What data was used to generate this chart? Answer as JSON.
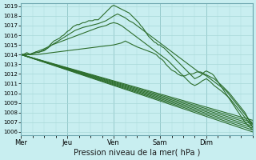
{
  "title": "Pression niveau de la mer( hPa )",
  "bg_color": "#c8eef0",
  "grid_color": "#a8d8d8",
  "line_color": "#2d6e2d",
  "ymin": 1006,
  "ymax": 1019,
  "yticks": [
    1006,
    1007,
    1008,
    1009,
    1010,
    1011,
    1012,
    1013,
    1014,
    1015,
    1016,
    1017,
    1018,
    1019
  ],
  "day_labels": [
    "Mer",
    "Jeu",
    "Ven",
    "Sam",
    "Dim"
  ],
  "day_positions": [
    0,
    24,
    48,
    72,
    96
  ],
  "total_hours": 120,
  "series": [
    {
      "points": [
        [
          0,
          1014.0
        ],
        [
          1,
          1014.0
        ],
        [
          2,
          1014.1
        ],
        [
          3,
          1014.2
        ],
        [
          4,
          1014.1
        ],
        [
          5,
          1014.0
        ],
        [
          6,
          1014.1
        ],
        [
          7,
          1014.2
        ],
        [
          8,
          1014.3
        ],
        [
          9,
          1014.2
        ],
        [
          10,
          1014.3
        ],
        [
          11,
          1014.4
        ],
        [
          12,
          1014.5
        ],
        [
          13,
          1014.6
        ],
        [
          14,
          1014.7
        ],
        [
          15,
          1015.0
        ],
        [
          16,
          1015.2
        ],
        [
          17,
          1015.4
        ],
        [
          18,
          1015.5
        ],
        [
          19,
          1015.6
        ],
        [
          20,
          1015.7
        ],
        [
          21,
          1015.9
        ],
        [
          22,
          1016.0
        ],
        [
          23,
          1016.2
        ],
        [
          24,
          1016.4
        ],
        [
          25,
          1016.5
        ],
        [
          26,
          1016.7
        ],
        [
          27,
          1016.9
        ],
        [
          28,
          1017.0
        ],
        [
          29,
          1017.1
        ],
        [
          30,
          1017.1
        ],
        [
          31,
          1017.2
        ],
        [
          32,
          1017.3
        ],
        [
          33,
          1017.3
        ],
        [
          34,
          1017.4
        ],
        [
          35,
          1017.5
        ],
        [
          36,
          1017.5
        ],
        [
          37,
          1017.5
        ],
        [
          38,
          1017.6
        ],
        [
          39,
          1017.6
        ],
        [
          40,
          1017.6
        ],
        [
          41,
          1017.8
        ],
        [
          42,
          1018.0
        ],
        [
          43,
          1018.2
        ],
        [
          44,
          1018.4
        ],
        [
          45,
          1018.6
        ],
        [
          46,
          1018.8
        ],
        [
          47,
          1019.0
        ],
        [
          48,
          1019.1
        ],
        [
          49,
          1019.0
        ],
        [
          50,
          1018.9
        ],
        [
          51,
          1018.8
        ],
        [
          52,
          1018.7
        ],
        [
          53,
          1018.6
        ],
        [
          54,
          1018.5
        ],
        [
          55,
          1018.4
        ],
        [
          56,
          1018.3
        ],
        [
          57,
          1018.1
        ],
        [
          58,
          1017.9
        ],
        [
          59,
          1017.7
        ],
        [
          60,
          1017.5
        ],
        [
          61,
          1017.3
        ],
        [
          62,
          1017.0
        ],
        [
          63,
          1016.8
        ],
        [
          64,
          1016.5
        ],
        [
          65,
          1016.2
        ],
        [
          66,
          1015.9
        ],
        [
          67,
          1015.7
        ],
        [
          68,
          1015.5
        ],
        [
          69,
          1015.3
        ],
        [
          70,
          1015.2
        ],
        [
          71,
          1015.0
        ],
        [
          72,
          1015.0
        ],
        [
          73,
          1014.8
        ],
        [
          74,
          1014.7
        ],
        [
          75,
          1014.5
        ],
        [
          76,
          1014.3
        ],
        [
          77,
          1014.1
        ],
        [
          78,
          1013.9
        ],
        [
          79,
          1013.7
        ],
        [
          80,
          1013.5
        ],
        [
          81,
          1013.3
        ],
        [
          82,
          1013.1
        ],
        [
          83,
          1012.9
        ],
        [
          84,
          1012.7
        ],
        [
          85,
          1012.5
        ],
        [
          86,
          1012.3
        ],
        [
          87,
          1012.1
        ],
        [
          88,
          1011.9
        ],
        [
          89,
          1011.7
        ],
        [
          90,
          1011.5
        ],
        [
          91,
          1011.6
        ],
        [
          92,
          1011.7
        ],
        [
          93,
          1011.8
        ],
        [
          94,
          1012.0
        ],
        [
          95,
          1012.2
        ],
        [
          96,
          1012.3
        ],
        [
          97,
          1012.2
        ],
        [
          98,
          1012.1
        ],
        [
          99,
          1012.0
        ],
        [
          100,
          1011.8
        ],
        [
          101,
          1011.5
        ],
        [
          102,
          1011.2
        ],
        [
          103,
          1010.9
        ],
        [
          104,
          1010.6
        ],
        [
          105,
          1010.3
        ],
        [
          106,
          1010.0
        ],
        [
          107,
          1009.7
        ],
        [
          108,
          1009.4
        ],
        [
          109,
          1009.1
        ],
        [
          110,
          1008.8
        ],
        [
          111,
          1008.5
        ],
        [
          112,
          1008.2
        ],
        [
          113,
          1007.9
        ],
        [
          114,
          1007.6
        ],
        [
          115,
          1007.3
        ],
        [
          116,
          1007.0
        ],
        [
          117,
          1006.8
        ],
        [
          118,
          1006.6
        ],
        [
          119,
          1006.4
        ],
        [
          120,
          1006.2
        ]
      ]
    },
    {
      "points": [
        [
          0,
          1014.0
        ],
        [
          4,
          1014.0
        ],
        [
          8,
          1014.2
        ],
        [
          12,
          1014.4
        ],
        [
          16,
          1015.0
        ],
        [
          20,
          1015.5
        ],
        [
          24,
          1016.0
        ],
        [
          28,
          1016.5
        ],
        [
          32,
          1016.8
        ],
        [
          36,
          1017.0
        ],
        [
          40,
          1017.2
        ],
        [
          44,
          1017.5
        ],
        [
          48,
          1018.0
        ],
        [
          50,
          1018.2
        ],
        [
          52,
          1018.0
        ],
        [
          54,
          1017.8
        ],
        [
          56,
          1017.5
        ],
        [
          58,
          1017.3
        ],
        [
          60,
          1017.0
        ],
        [
          62,
          1016.7
        ],
        [
          64,
          1016.4
        ],
        [
          66,
          1016.1
        ],
        [
          68,
          1015.8
        ],
        [
          70,
          1015.5
        ],
        [
          72,
          1015.2
        ],
        [
          74,
          1014.9
        ],
        [
          76,
          1014.6
        ],
        [
          78,
          1014.3
        ],
        [
          80,
          1014.0
        ],
        [
          82,
          1013.7
        ],
        [
          84,
          1013.4
        ],
        [
          86,
          1013.1
        ],
        [
          88,
          1012.8
        ],
        [
          90,
          1012.5
        ],
        [
          92,
          1012.2
        ],
        [
          94,
          1012.0
        ],
        [
          96,
          1011.8
        ],
        [
          98,
          1011.5
        ],
        [
          100,
          1011.2
        ],
        [
          102,
          1010.9
        ],
        [
          104,
          1010.6
        ],
        [
          106,
          1010.3
        ],
        [
          108,
          1009.8
        ],
        [
          110,
          1009.3
        ],
        [
          112,
          1008.8
        ],
        [
          114,
          1008.3
        ],
        [
          116,
          1007.8
        ],
        [
          118,
          1007.3
        ],
        [
          120,
          1006.8
        ]
      ]
    },
    {
      "points": [
        [
          0,
          1014.0
        ],
        [
          120,
          1006.0
        ]
      ]
    },
    {
      "points": [
        [
          0,
          1014.0
        ],
        [
          120,
          1006.2
        ]
      ]
    },
    {
      "points": [
        [
          0,
          1014.0
        ],
        [
          120,
          1006.4
        ]
      ]
    },
    {
      "points": [
        [
          0,
          1014.0
        ],
        [
          120,
          1006.6
        ]
      ]
    },
    {
      "points": [
        [
          0,
          1014.0
        ],
        [
          120,
          1006.8
        ]
      ]
    },
    {
      "points": [
        [
          0,
          1014.0
        ],
        [
          120,
          1007.0
        ]
      ]
    },
    {
      "points": [
        [
          0,
          1014.0
        ],
        [
          120,
          1007.2
        ]
      ]
    },
    {
      "points": [
        [
          0,
          1014.0
        ],
        [
          4,
          1014.0
        ],
        [
          8,
          1014.3
        ],
        [
          12,
          1014.6
        ],
        [
          16,
          1015.0
        ],
        [
          20,
          1015.3
        ],
        [
          24,
          1015.6
        ],
        [
          28,
          1015.9
        ],
        [
          32,
          1016.2
        ],
        [
          36,
          1016.5
        ],
        [
          40,
          1016.8
        ],
        [
          44,
          1017.0
        ],
        [
          46,
          1017.2
        ],
        [
          48,
          1017.3
        ],
        [
          50,
          1017.2
        ],
        [
          52,
          1017.0
        ],
        [
          54,
          1016.7
        ],
        [
          56,
          1016.4
        ],
        [
          58,
          1016.1
        ],
        [
          60,
          1015.8
        ],
        [
          62,
          1015.5
        ],
        [
          64,
          1015.2
        ],
        [
          66,
          1014.9
        ],
        [
          68,
          1014.6
        ],
        [
          70,
          1014.3
        ],
        [
          72,
          1014.0
        ],
        [
          74,
          1013.7
        ],
        [
          76,
          1013.4
        ],
        [
          78,
          1013.0
        ],
        [
          80,
          1012.6
        ],
        [
          82,
          1012.2
        ],
        [
          84,
          1011.8
        ],
        [
          86,
          1011.4
        ],
        [
          88,
          1011.0
        ],
        [
          90,
          1010.8
        ],
        [
          92,
          1011.0
        ],
        [
          94,
          1011.3
        ],
        [
          96,
          1011.5
        ],
        [
          98,
          1011.2
        ],
        [
          100,
          1010.8
        ],
        [
          104,
          1010.2
        ],
        [
          108,
          1009.5
        ],
        [
          112,
          1008.5
        ],
        [
          116,
          1007.5
        ],
        [
          120,
          1006.5
        ]
      ]
    },
    {
      "points": [
        [
          0,
          1014.0
        ],
        [
          8,
          1014.0
        ],
        [
          16,
          1014.2
        ],
        [
          24,
          1014.4
        ],
        [
          32,
          1014.6
        ],
        [
          40,
          1014.8
        ],
        [
          48,
          1015.0
        ],
        [
          52,
          1015.2
        ],
        [
          54,
          1015.4
        ],
        [
          56,
          1015.2
        ],
        [
          60,
          1014.8
        ],
        [
          64,
          1014.5
        ],
        [
          68,
          1014.2
        ],
        [
          70,
          1014.0
        ],
        [
          71,
          1013.8
        ],
        [
          72,
          1013.6
        ],
        [
          73,
          1013.5
        ],
        [
          74,
          1013.3
        ],
        [
          75,
          1013.0
        ],
        [
          76,
          1012.8
        ],
        [
          77,
          1012.6
        ],
        [
          78,
          1012.4
        ],
        [
          79,
          1012.3
        ],
        [
          80,
          1012.2
        ],
        [
          81,
          1012.0
        ],
        [
          82,
          1011.9
        ],
        [
          83,
          1011.8
        ],
        [
          84,
          1011.8
        ],
        [
          85,
          1011.8
        ],
        [
          86,
          1011.9
        ],
        [
          87,
          1012.0
        ],
        [
          88,
          1012.0
        ],
        [
          89,
          1012.0
        ],
        [
          90,
          1012.1
        ],
        [
          91,
          1012.2
        ],
        [
          92,
          1012.2
        ],
        [
          93,
          1012.2
        ],
        [
          94,
          1012.1
        ],
        [
          95,
          1012.0
        ],
        [
          96,
          1011.9
        ],
        [
          100,
          1011.5
        ],
        [
          104,
          1010.8
        ],
        [
          108,
          1010.0
        ],
        [
          112,
          1009.0
        ],
        [
          116,
          1008.0
        ],
        [
          120,
          1006.5
        ]
      ]
    }
  ]
}
